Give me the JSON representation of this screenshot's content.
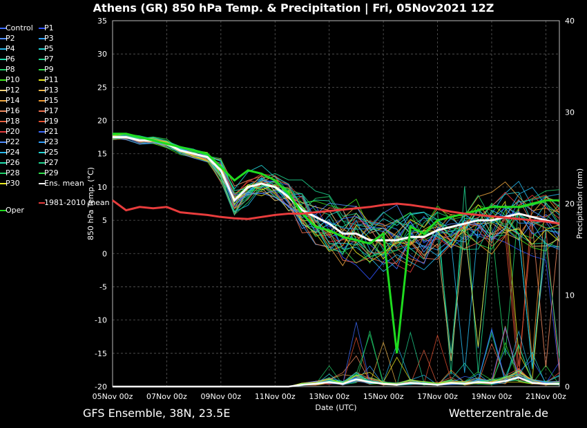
{
  "header": {
    "title": "Athens  (GR)  850 hPa Temp. & Precipitation | Fri, 05Nov2021 12Z"
  },
  "footer": {
    "left": "GFS Ensemble, 38N, 23.5E",
    "right": "Wetterzentrale.de"
  },
  "colors": {
    "background": "#000000",
    "grid": "#5a5a5a",
    "ens_mean": "#ffffff",
    "climatology": "#e83c3c",
    "oper": "#1fdc1f"
  },
  "chart_data": {
    "type": "line",
    "xlabel": "Date (UTC)",
    "ylabel": "850 hPa Temp. (°C)",
    "y2label": "Precipitation (mm)",
    "x_range": [
      "05Nov2021 00z",
      "21Nov2021 12z"
    ],
    "x_ticks": [
      "05Nov 00z",
      "07Nov 00z",
      "09Nov 00z",
      "11Nov 00z",
      "13Nov 00z",
      "15Nov 00z",
      "17Nov 00z",
      "19Nov 00z",
      "21Nov 00z"
    ],
    "ylim": [
      -20,
      35
    ],
    "y_ticks": [
      "35",
      "30",
      "25",
      "20",
      "15",
      "10",
      "5",
      "0",
      "-5",
      "-10",
      "-15",
      "-20"
    ],
    "y2lim": [
      0,
      40
    ],
    "y2_ticks": [
      "40",
      "30",
      "20",
      "10",
      "0"
    ],
    "grid": true,
    "legend_position": "left",
    "legend": [
      {
        "label": "Control",
        "color": "#3c6cff"
      },
      {
        "label": "P1",
        "color": "#2f52ff"
      },
      {
        "label": "P2",
        "color": "#4f8dff"
      },
      {
        "label": "P3",
        "color": "#2fa0ff"
      },
      {
        "label": "P4",
        "color": "#27b8ee"
      },
      {
        "label": "P5",
        "color": "#22d6d6"
      },
      {
        "label": "P6",
        "color": "#1fe0b0"
      },
      {
        "label": "P7",
        "color": "#1fd690"
      },
      {
        "label": "P8",
        "color": "#1fd06a"
      },
      {
        "label": "P9",
        "color": "#2fe04a"
      },
      {
        "label": "P10",
        "color": "#3fe51f"
      },
      {
        "label": "P11",
        "color": "#e8e81f"
      },
      {
        "label": "P12",
        "color": "#f0d27a"
      },
      {
        "label": "P13",
        "color": "#f0b84a"
      },
      {
        "label": "P14",
        "color": "#f0a840"
      },
      {
        "label": "P15",
        "color": "#f09a30"
      },
      {
        "label": "P16",
        "color": "#f08a60"
      },
      {
        "label": "P17",
        "color": "#f07050"
      },
      {
        "label": "P18",
        "color": "#e86040"
      },
      {
        "label": "P19",
        "color": "#e85030"
      },
      {
        "label": "P20",
        "color": "#e83c3c"
      },
      {
        "label": "P21",
        "color": "#3c6cff"
      },
      {
        "label": "P22",
        "color": "#4f8dff"
      },
      {
        "label": "P23",
        "color": "#2fa0ff"
      },
      {
        "label": "P24",
        "color": "#27b8ee"
      },
      {
        "label": "P25",
        "color": "#22d6d6"
      },
      {
        "label": "P26",
        "color": "#1fe0b0"
      },
      {
        "label": "P27",
        "color": "#1fd690"
      },
      {
        "label": "P28",
        "color": "#1fd06a"
      },
      {
        "label": "P29",
        "color": "#2fe04a"
      },
      {
        "label": "P30",
        "color": "#e8e81f"
      },
      {
        "label": "Ens. mean",
        "color": "#ffffff"
      },
      {
        "label": "Oper",
        "color": "#1fdc1f"
      },
      {
        "label": "1981-2010 mean",
        "color": "#e83c3c"
      }
    ],
    "series": [
      {
        "name": "Ens. mean",
        "x": [
          0,
          0.5,
          1,
          1.5,
          2,
          2.5,
          3,
          3.5,
          4,
          4.5,
          5,
          5.5,
          6,
          6.5,
          7,
          7.5,
          8,
          8.5,
          9,
          9.5,
          10,
          10.5,
          11,
          11.5,
          12,
          12.5,
          13,
          13.5,
          14,
          14.5,
          15,
          15.5,
          16,
          16.5
        ],
        "values": [
          17.5,
          17.5,
          17,
          17,
          16.5,
          15.5,
          15,
          14.5,
          12.5,
          8,
          10,
          10.5,
          10,
          8.5,
          6.5,
          5.5,
          4.5,
          3,
          3,
          2,
          2,
          2,
          2.5,
          2.5,
          3.5,
          4,
          4.5,
          5,
          5,
          5.5,
          6,
          5.5,
          5,
          4.5
        ]
      },
      {
        "name": "Oper",
        "x": [
          0,
          0.5,
          1,
          1.5,
          2,
          2.5,
          3,
          3.5,
          4,
          4.5,
          5,
          5.5,
          6,
          6.5,
          7,
          7.5,
          8,
          8.5,
          9,
          9.5,
          10,
          10.5,
          11,
          11.5,
          12,
          12.5,
          13,
          13.5,
          14,
          14.5,
          15,
          15.5,
          16,
          16.5
        ],
        "values": [
          18,
          18,
          17.5,
          17,
          16.5,
          16,
          15.5,
          15,
          13,
          11,
          12.5,
          12,
          11,
          9,
          6,
          4,
          3.5,
          2.5,
          2,
          1.5,
          3,
          -15,
          4,
          3,
          5,
          5.5,
          6,
          6.5,
          7,
          7,
          7,
          7.5,
          8,
          8
        ]
      },
      {
        "name": "1981-2010 mean",
        "x": [
          0,
          0.5,
          1,
          1.5,
          2,
          2.5,
          3,
          3.5,
          4,
          4.5,
          5,
          5.5,
          6,
          6.5,
          7,
          7.5,
          8,
          8.5,
          9,
          9.5,
          10,
          10.5,
          11,
          11.5,
          12,
          12.5,
          13,
          13.5,
          14,
          14.5,
          15,
          15.5,
          16,
          16.5
        ],
        "values": [
          8,
          6.5,
          7,
          6.8,
          7,
          6.2,
          6,
          5.8,
          5.5,
          5.3,
          5.2,
          5.5,
          5.8,
          6,
          6,
          6.2,
          6.4,
          6.6,
          6.8,
          7,
          7.3,
          7.5,
          7.3,
          7,
          6.7,
          6.3,
          6,
          5.8,
          5.6,
          5.4,
          5.2,
          5,
          4.8,
          4.5
        ]
      }
    ],
    "precip_mean": [
      0,
      0,
      0,
      0,
      0,
      0,
      0,
      0,
      0,
      0,
      0,
      0,
      0,
      0,
      0.2,
      0.3,
      0.5,
      0.3,
      0.8,
      0.5,
      0.3,
      0.2,
      0.4,
      0.3,
      0.2,
      0.4,
      0.3,
      0.5,
      0.4,
      0.6,
      1.0,
      0.4,
      0.3,
      0.3
    ]
  }
}
